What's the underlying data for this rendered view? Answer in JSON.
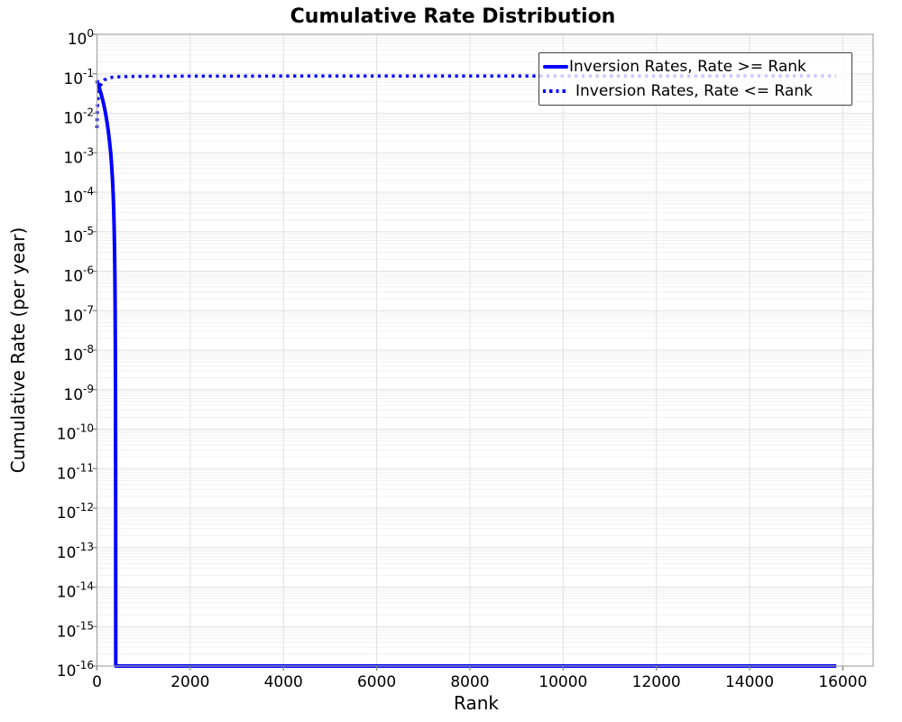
{
  "chart_data": {
    "type": "line",
    "title": "Cumulative Rate Distribution",
    "xlabel": "Rank",
    "ylabel": "Cumulative Rate (per year)",
    "x_ticks": [
      0,
      2000,
      4000,
      6000,
      8000,
      10000,
      12000,
      14000,
      16000
    ],
    "xlim": [
      0,
      16650
    ],
    "y_scale": "log",
    "ylim": [
      1e-16,
      1
    ],
    "y_tick_exponents": [
      0,
      -1,
      -2,
      -3,
      -4,
      -5,
      -6,
      -7,
      -8,
      -9,
      -10,
      -11,
      -12,
      -13,
      -14,
      -15,
      -16
    ],
    "y_tick_mantissa": "10",
    "grid": {
      "major": true,
      "minor_y": true,
      "vertical_major": true
    },
    "legend": {
      "position": "upper-right",
      "frame_alpha": 0.78
    },
    "series": [
      {
        "name": "Inversion Rates, Rate >= Rank",
        "style": "solid",
        "color": "#0000ff",
        "line_width": 4,
        "points": [
          [
            0,
            0.068
          ],
          [
            20,
            0.057
          ],
          [
            45,
            0.046
          ],
          [
            70,
            0.037
          ],
          [
            95,
            0.029
          ],
          [
            120,
            0.0225
          ],
          [
            145,
            0.017
          ],
          [
            170,
            0.0122
          ],
          [
            195,
            0.0084
          ],
          [
            220,
            0.0055
          ],
          [
            245,
            0.0034
          ],
          [
            270,
            0.0019
          ],
          [
            295,
            0.00099
          ],
          [
            315,
            0.00047
          ],
          [
            333,
            0.00021
          ],
          [
            348,
            8.5e-05
          ],
          [
            360,
            3.2e-05
          ],
          [
            370,
            1.05e-05
          ],
          [
            378,
            3e-06
          ],
          [
            385,
            6.5e-07
          ],
          [
            390,
            1.1e-07
          ],
          [
            394,
            1.4e-08
          ],
          [
            397,
            1.2e-09
          ],
          [
            399,
            6e-11
          ],
          [
            401,
            1.5e-12
          ],
          [
            402,
            1e-14
          ],
          [
            403,
            1e-16
          ],
          [
            15860,
            1e-16
          ]
        ]
      },
      {
        "name": "Inversion Rates, Rate <= Rank",
        "style": "dotted",
        "color": "#0000ff",
        "line_width": 3.5,
        "points": [
          [
            0,
            0.0042
          ],
          [
            1,
            0.0053
          ],
          [
            2,
            0.0066
          ],
          [
            4,
            0.0086
          ],
          [
            7,
            0.0115
          ],
          [
            12,
            0.0155
          ],
          [
            20,
            0.021
          ],
          [
            32,
            0.029
          ],
          [
            50,
            0.039
          ],
          [
            75,
            0.05
          ],
          [
            110,
            0.061
          ],
          [
            160,
            0.07
          ],
          [
            230,
            0.077
          ],
          [
            330,
            0.0815
          ],
          [
            500,
            0.0843
          ],
          [
            800,
            0.0858
          ],
          [
            1400,
            0.0867
          ],
          [
            2500,
            0.0872
          ],
          [
            5000,
            0.0876
          ],
          [
            9000,
            0.0879
          ],
          [
            15860,
            0.088
          ]
        ]
      }
    ]
  },
  "colors": {
    "line": "#0000ff",
    "grid_major": "#e0e0e0",
    "grid_minor": "#f0f0f0",
    "spine": "#a6a6a6",
    "tick": "#808080",
    "text": "#000000"
  }
}
